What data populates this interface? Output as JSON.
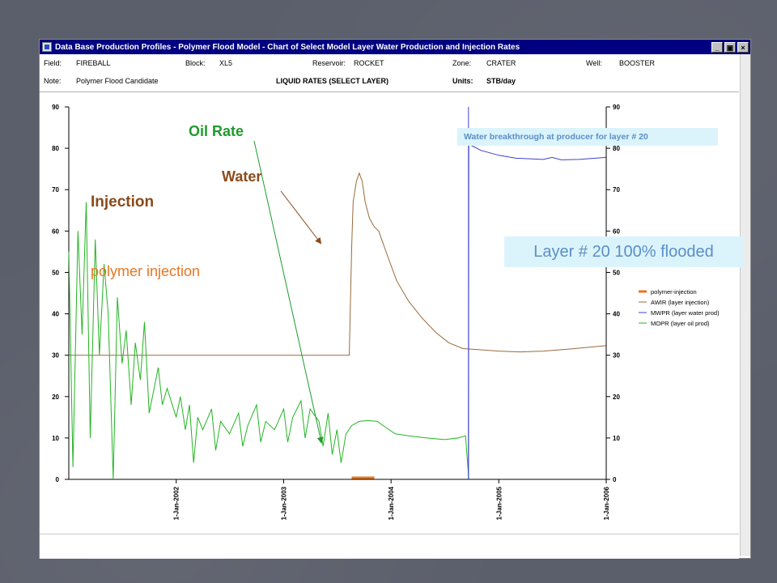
{
  "window": {
    "title": "Data Base Production Profiles - Polymer Flood Model - Chart of Select Model Layer Water Production and Injection Rates",
    "controls": [
      "_",
      "▣",
      "×"
    ]
  },
  "header": {
    "field_label": "Field:",
    "field_value": "FIREBALL",
    "block_label": "Block:",
    "block_value": "XL5",
    "reservoir_label": "Reservoir:",
    "reservoir_value": "ROCKET",
    "zone_label": "Zone:",
    "zone_value": "CRATER",
    "well_label": "Well:",
    "well_value": "BOOSTER",
    "note_label": "Note:",
    "note_value": "Polymer Flood Candidate",
    "chart_heading": "LIQUID RATES (SELECT LAYER)",
    "units_label": "Units:",
    "units_value": "STB/day"
  },
  "annotations": {
    "oil_rate": "Oil Rate",
    "water": "Water",
    "injection": "Injection",
    "polymer_injection": "polymer injection",
    "breakthrough": "Water breakthrough at producer for layer # 20",
    "flooded": "Layer # 20 100% flooded"
  },
  "colors": {
    "polymer": "#e87722",
    "awir": "#9a6a3a",
    "mwpr": "#4040cc",
    "mopr": "#22b422",
    "oil_label": "#1f9a2e",
    "water_label": "#8a4a1a",
    "polymer_label": "#e87722",
    "breakthrough_line": "#4040cc"
  },
  "chart_data": {
    "type": "line",
    "title": "LIQUID RATES (SELECT LAYER)",
    "ylabel": "STB/day",
    "ylim": [
      0,
      90
    ],
    "yticks": [
      0,
      10,
      20,
      30,
      40,
      50,
      60,
      70,
      80,
      90
    ],
    "xlim": [
      "2001-01-01",
      "2006-01-01"
    ],
    "xticks": [
      "1-Jan-2002",
      "1-Jan-2003",
      "1-Jan-2004",
      "1-Jan-2005",
      "1-Jan-2006"
    ],
    "grid": false,
    "legend_position": "right",
    "series": [
      {
        "name": "polymer-injection",
        "color": "#e87722",
        "points": [
          [
            "2003-08-20",
            0.4
          ],
          [
            "2003-11-05",
            0.4
          ]
        ]
      },
      {
        "name": "AWIR (layer injection)",
        "color": "#9a6a3a",
        "points": [
          [
            "2001-01-01",
            30
          ],
          [
            "2003-08-12",
            30
          ],
          [
            "2003-08-20",
            56
          ],
          [
            "2003-08-25",
            67
          ],
          [
            "2003-09-05",
            72
          ],
          [
            "2003-09-15",
            74
          ],
          [
            "2003-09-25",
            72
          ],
          [
            "2003-10-05",
            67
          ],
          [
            "2003-10-20",
            63
          ],
          [
            "2003-11-05",
            61
          ],
          [
            "2003-11-20",
            60
          ],
          [
            "2003-12-20",
            54
          ],
          [
            "2004-01-20",
            48
          ],
          [
            "2004-03-01",
            43
          ],
          [
            "2004-04-15",
            39
          ],
          [
            "2004-06-01",
            35.5
          ],
          [
            "2004-07-15",
            33
          ],
          [
            "2004-09-01",
            31.6
          ],
          [
            "2004-11-01",
            31.3
          ],
          [
            "2005-01-01",
            31.0
          ],
          [
            "2005-03-15",
            30.8
          ],
          [
            "2005-06-01",
            31.0
          ],
          [
            "2005-09-01",
            31.5
          ],
          [
            "2005-12-31",
            32.3
          ]
        ]
      },
      {
        "name": "MWPR (layer water prod)",
        "color": "#4040cc",
        "points": [
          [
            "2004-09-20",
            0
          ],
          [
            "2004-09-21",
            81
          ],
          [
            "2004-11-01",
            79.5
          ],
          [
            "2005-01-01",
            78.3
          ],
          [
            "2005-03-01",
            77.6
          ],
          [
            "2005-06-01",
            77.3
          ],
          [
            "2005-07-01",
            77.8
          ],
          [
            "2005-08-01",
            77.2
          ],
          [
            "2005-10-01",
            77.3
          ],
          [
            "2005-12-31",
            77.8
          ]
        ]
      },
      {
        "name": "MOPR (layer oil prod)",
        "color": "#22b422",
        "points": [
          [
            "2001-01-01",
            55
          ],
          [
            "2001-01-15",
            3
          ],
          [
            "2001-02-01",
            60
          ],
          [
            "2001-02-15",
            35
          ],
          [
            "2001-03-01",
            67
          ],
          [
            "2001-03-15",
            10
          ],
          [
            "2001-04-01",
            58
          ],
          [
            "2001-04-15",
            30
          ],
          [
            "2001-05-01",
            52
          ],
          [
            "2001-05-15",
            40
          ],
          [
            "2001-06-01",
            0
          ],
          [
            "2001-06-15",
            44
          ],
          [
            "2001-07-01",
            28
          ],
          [
            "2001-07-15",
            36
          ],
          [
            "2001-08-01",
            18
          ],
          [
            "2001-08-15",
            33
          ],
          [
            "2001-09-01",
            24
          ],
          [
            "2001-09-15",
            38
          ],
          [
            "2001-10-01",
            16
          ],
          [
            "2001-11-01",
            27
          ],
          [
            "2001-11-15",
            18
          ],
          [
            "2001-12-01",
            22
          ],
          [
            "2002-01-01",
            15
          ],
          [
            "2002-01-15",
            20
          ],
          [
            "2002-02-01",
            12
          ],
          [
            "2002-02-15",
            18
          ],
          [
            "2002-03-01",
            4
          ],
          [
            "2002-03-15",
            15
          ],
          [
            "2002-04-01",
            12
          ],
          [
            "2002-05-01",
            17
          ],
          [
            "2002-05-15",
            7
          ],
          [
            "2002-06-01",
            14
          ],
          [
            "2002-07-01",
            11
          ],
          [
            "2002-08-01",
            16
          ],
          [
            "2002-08-15",
            8
          ],
          [
            "2002-09-01",
            13
          ],
          [
            "2002-10-01",
            18
          ],
          [
            "2002-10-15",
            9
          ],
          [
            "2002-11-01",
            14
          ],
          [
            "2002-12-01",
            12
          ],
          [
            "2003-01-01",
            17
          ],
          [
            "2003-01-15",
            9
          ],
          [
            "2003-02-01",
            15
          ],
          [
            "2003-03-01",
            19
          ],
          [
            "2003-03-15",
            10
          ],
          [
            "2003-04-01",
            17
          ],
          [
            "2003-05-01",
            14
          ],
          [
            "2003-05-15",
            8
          ],
          [
            "2003-06-01",
            16
          ],
          [
            "2003-06-15",
            6
          ],
          [
            "2003-07-01",
            12
          ],
          [
            "2003-07-15",
            4
          ],
          [
            "2003-08-01",
            11
          ],
          [
            "2003-08-20",
            13
          ],
          [
            "2003-09-15",
            14
          ],
          [
            "2003-10-15",
            14.2
          ],
          [
            "2003-11-15",
            14
          ],
          [
            "2003-12-15",
            12.5
          ],
          [
            "2004-01-15",
            11
          ],
          [
            "2004-03-01",
            10.5
          ],
          [
            "2004-05-01",
            10
          ],
          [
            "2004-07-01",
            9.6
          ],
          [
            "2004-08-15",
            10
          ],
          [
            "2004-09-10",
            10.5
          ],
          [
            "2004-09-21",
            0
          ]
        ]
      }
    ]
  }
}
